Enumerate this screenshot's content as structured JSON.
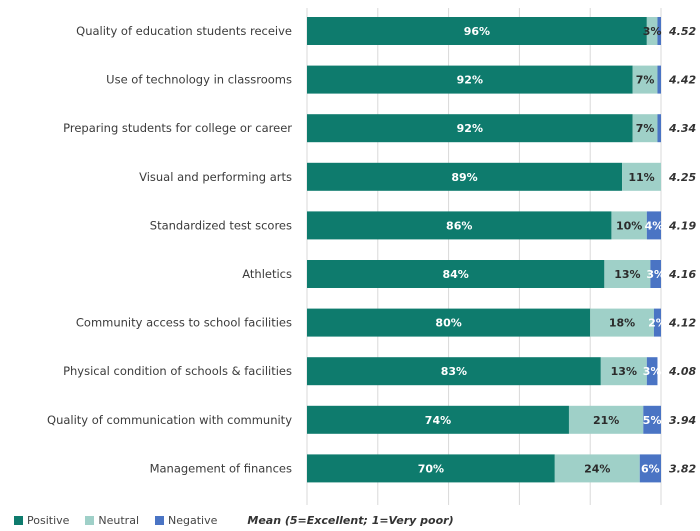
{
  "colors": {
    "positive": "#0e7b6d",
    "neutral": "#9fd0c8",
    "negative": "#4a74c4",
    "grid": "#d9d9d9"
  },
  "legend": {
    "positive": "Positive",
    "neutral": "Neutral",
    "negative": "Negative",
    "mean_note": "Mean (5=Excellent; 1=Very poor)"
  },
  "chart_data": {
    "type": "bar",
    "orientation": "horizontal",
    "stacked": true,
    "xlim": [
      0,
      100
    ],
    "grid": true,
    "legend_position": "bottom-left",
    "categories": [
      "Quality of education students receive",
      "Use of technology in classrooms",
      "Preparing students for college or career",
      "Visual and performing arts",
      "Standardized test scores",
      "Athletics",
      "Community access to school facilities",
      "Physical condition of schools & facilities",
      "Quality of communication with community",
      "Management of finances"
    ],
    "series": [
      {
        "name": "Positive",
        "values": [
          96,
          92,
          92,
          89,
          86,
          84,
          80,
          83,
          74,
          70
        ],
        "labels": [
          "96%",
          "92%",
          "92%",
          "89%",
          "86%",
          "84%",
          "80%",
          "83%",
          "74%",
          "70%"
        ]
      },
      {
        "name": "Neutral",
        "values": [
          3,
          7,
          7,
          11,
          10,
          13,
          18,
          13,
          21,
          24
        ],
        "labels": [
          "3%",
          "7%",
          "7%",
          "11%",
          "10%",
          "13%",
          "18%",
          "13%",
          "21%",
          "24%"
        ]
      },
      {
        "name": "Negative",
        "values": [
          1,
          1,
          1,
          0,
          4,
          3,
          2,
          3,
          5,
          6
        ],
        "labels": [
          "",
          "",
          "",
          "",
          "4%",
          "3%",
          "2%",
          "3%",
          "5%",
          "6%"
        ]
      }
    ],
    "mean": [
      "4.52",
      "4.42",
      "4.34",
      "4.25",
      "4.19",
      "4.16",
      "4.12",
      "4.08",
      "3.94",
      "3.82"
    ]
  }
}
